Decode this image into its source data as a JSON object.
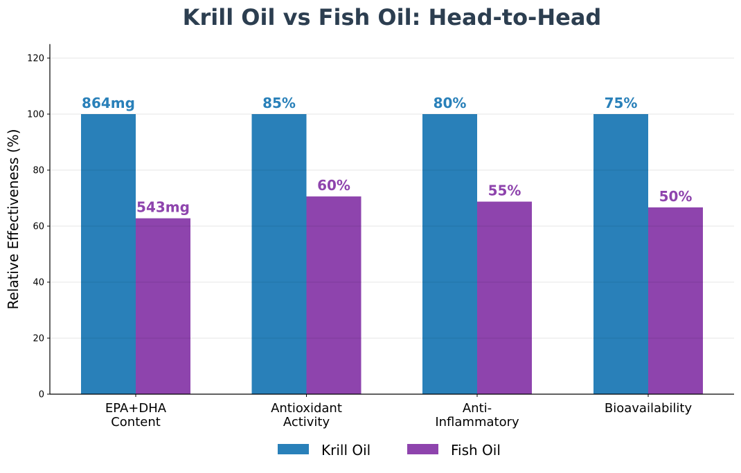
{
  "chart_data": {
    "type": "bar",
    "title": "Krill Oil vs Fish Oil: Head-to-Head",
    "xlabel": "",
    "ylabel": "Relative Effectiveness (%)",
    "ylim": [
      0,
      125
    ],
    "yticks": [
      0,
      20,
      40,
      60,
      80,
      100,
      120
    ],
    "grid": true,
    "legend_position": "bottom-center",
    "categories": [
      [
        "EPA+DHA",
        "Content"
      ],
      [
        "Antioxidant",
        "Activity"
      ],
      [
        "Anti-",
        "Inflammatory"
      ],
      [
        "Bioavailability"
      ]
    ],
    "series": [
      {
        "name": "Krill Oil",
        "color": "#2980b9",
        "values": [
          100,
          100,
          100,
          100
        ],
        "labels": [
          "864mg",
          "85%",
          "80%",
          "75%"
        ]
      },
      {
        "name": "Fish Oil",
        "color": "#8e44ad",
        "values": [
          62.8,
          70.6,
          68.75,
          66.7
        ],
        "labels": [
          "543mg",
          "60%",
          "55%",
          "50%"
        ]
      }
    ]
  }
}
